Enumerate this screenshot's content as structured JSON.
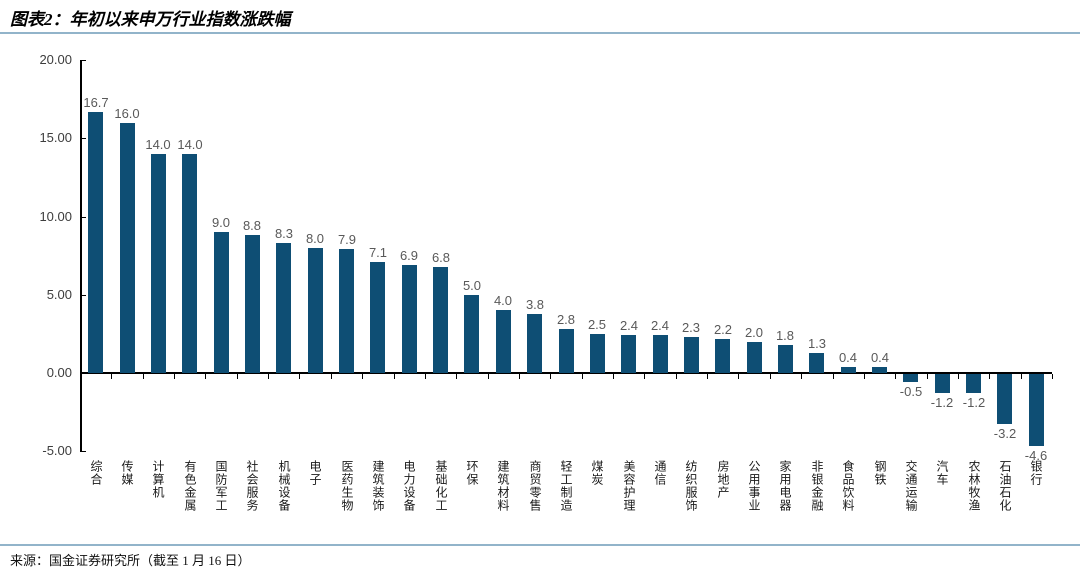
{
  "header": {
    "title": "图表2：年初以来申万行业指数涨跌幅"
  },
  "footer": {
    "source": "来源：国金证券研究所（截至 1 月 16 日）"
  },
  "colors": {
    "bar": "#0e4e74",
    "divider": "#92b4ca",
    "axis": "#000000",
    "value_label": "#595959"
  },
  "chart_data": {
    "type": "bar",
    "title": "年初以来申万行业指数涨跌幅",
    "categories": [
      "综合",
      "传媒",
      "计算机",
      "有色金属",
      "国防军工",
      "社会服务",
      "机械设备",
      "电子",
      "医药生物",
      "建筑装饰",
      "电力设备",
      "基础化工",
      "环保",
      "建筑材料",
      "商贸零售",
      "轻工制造",
      "煤炭",
      "美容护理",
      "通信",
      "纺织服饰",
      "房地产",
      "公用事业",
      "家用电器",
      "非银金融",
      "食品饮料",
      "钢铁",
      "交通运输",
      "汽车",
      "农林牧渔",
      "石油石化",
      "银行"
    ],
    "values": [
      16.7,
      16.0,
      14.0,
      14.0,
      9.0,
      8.8,
      8.3,
      8.0,
      7.9,
      7.1,
      6.9,
      6.8,
      5.0,
      4.0,
      3.8,
      2.8,
      2.5,
      2.4,
      2.4,
      2.3,
      2.2,
      2.0,
      1.8,
      1.3,
      0.4,
      0.4,
      -0.5,
      -1.2,
      -1.2,
      -3.2,
      -4.6
    ],
    "value_labels": [
      "16.7",
      "16.0",
      "14.0",
      "14.0",
      "9.0",
      "8.8",
      "8.3",
      "8.0",
      "7.9",
      "7.1",
      "6.9",
      "6.8",
      "5.0",
      "4.0",
      "3.8",
      "2.8",
      "2.5",
      "2.4",
      "2.4",
      "2.3",
      "2.2",
      "2.0",
      "1.8",
      "1.3",
      "0.4",
      "0.4",
      "-0.5",
      "-1.2",
      "-1.2",
      "-3.2",
      "-4.6"
    ],
    "xlabel": "",
    "ylabel": "",
    "ylim": [
      -5,
      20
    ],
    "yticks": [
      20,
      15,
      10,
      5,
      0,
      -5
    ],
    "ytick_labels": [
      "20.00",
      "15.00",
      "10.00",
      "5.00",
      "0.00",
      "-5.00"
    ],
    "grid": false,
    "legend_position": "none",
    "bar_color": "#0e4e74"
  }
}
